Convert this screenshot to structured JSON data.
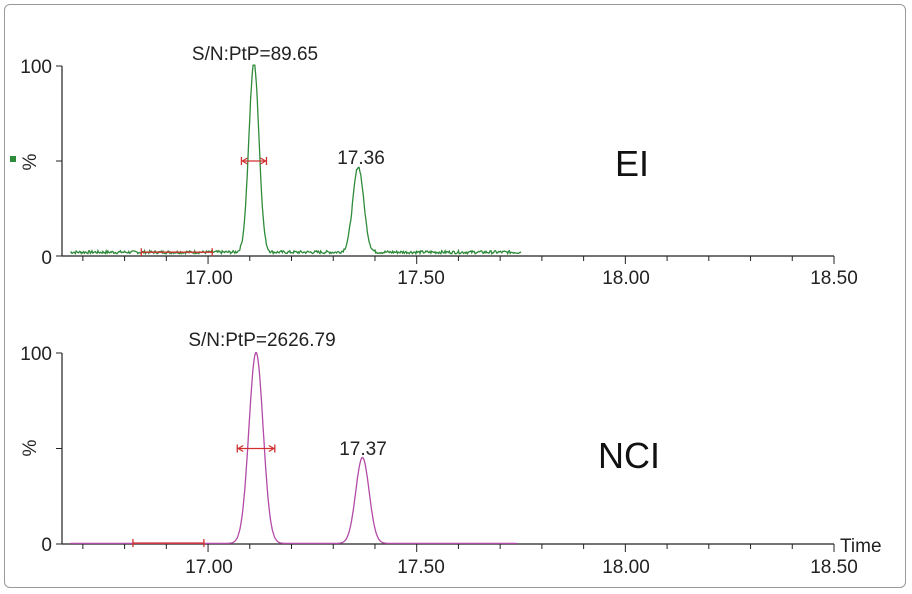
{
  "chart_data": [
    {
      "type": "line",
      "label": "EI",
      "color": "#2e8b3a",
      "ylabel": "%",
      "xlabel": "",
      "xlim": [
        16.65,
        18.5
      ],
      "ylim": [
        0,
        100
      ],
      "xticks": [
        "17.00",
        "17.50",
        "18.00",
        "18.50"
      ],
      "yticks": [
        "0",
        "100"
      ],
      "peaks": [
        {
          "x": 17.11,
          "height": 100,
          "width": 0.012
        },
        {
          "x": 17.36,
          "height": 45,
          "width": 0.013
        }
      ],
      "baseline_level": 2,
      "trace_end_x": 17.75,
      "annotations": [
        {
          "text": "S/N:PtP=89.65",
          "x": 17.11,
          "y": 100
        },
        {
          "text": "17.36",
          "x": 17.36,
          "y": 45
        }
      ],
      "noise_marker": {
        "x1": 16.84,
        "x2": 17.01,
        "y": 2
      },
      "width_marker": {
        "x1": 17.08,
        "x2": 17.14,
        "y": 50
      },
      "legend_marker_color": "#2e8b3a"
    },
    {
      "type": "line",
      "label": "NCI",
      "color": "#b44aa8",
      "ylabel": "%",
      "xlabel": "Time",
      "xlim": [
        16.65,
        18.5
      ],
      "ylim": [
        0,
        100
      ],
      "xticks": [
        "17.00",
        "17.50",
        "18.00",
        "18.50"
      ],
      "yticks": [
        "0",
        "100"
      ],
      "peaks": [
        {
          "x": 17.115,
          "height": 100,
          "width": 0.017
        },
        {
          "x": 17.37,
          "height": 45,
          "width": 0.016
        }
      ],
      "baseline_level": 0.3,
      "trace_end_x": 17.74,
      "annotations": [
        {
          "text": "S/N:PtP=2626.79",
          "x": 17.115,
          "y": 100
        },
        {
          "text": "17.37",
          "x": 17.37,
          "y": 45
        }
      ],
      "noise_marker": {
        "x1": 16.82,
        "x2": 16.99,
        "y": 0.5
      },
      "width_marker": {
        "x1": 17.07,
        "x2": 17.16,
        "y": 50
      }
    }
  ]
}
